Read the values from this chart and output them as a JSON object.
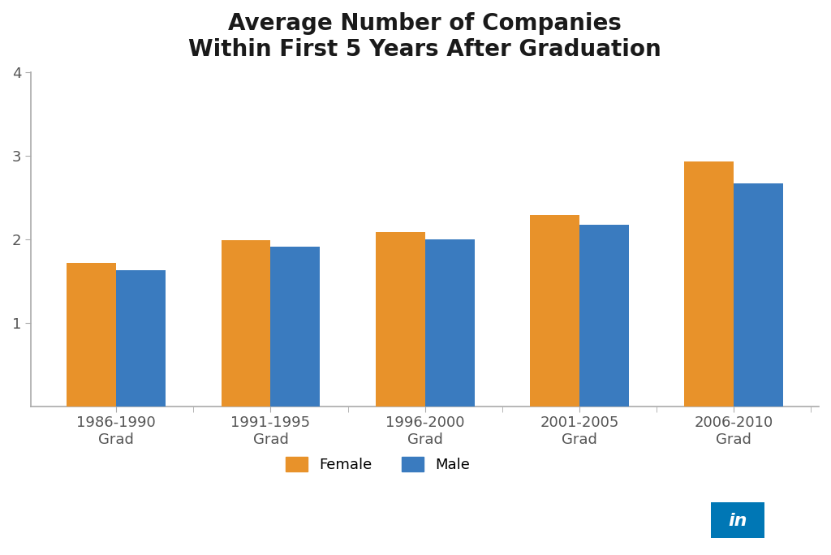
{
  "title": "Average Number of Companies\nWithin First 5 Years After Graduation",
  "categories": [
    "1986-1990\nGrad",
    "1991-1995\nGrad",
    "1996-2000\nGrad",
    "2001-2005\nGrad",
    "2006-2010\nGrad"
  ],
  "female_values": [
    1.72,
    1.99,
    2.08,
    2.29,
    2.93
  ],
  "male_values": [
    1.63,
    1.91,
    2.0,
    2.17,
    2.67
  ],
  "female_color": "#E8922A",
  "male_color": "#3A7BBF",
  "ylim": [
    0,
    4
  ],
  "yticks": [
    1,
    2,
    3,
    4
  ],
  "background_color": "#FFFFFF",
  "title_fontsize": 20,
  "tick_fontsize": 13,
  "legend_fontsize": 13,
  "bar_width": 0.32,
  "spine_color": "#AAAAAA",
  "linkedin_color": "#0077B5"
}
